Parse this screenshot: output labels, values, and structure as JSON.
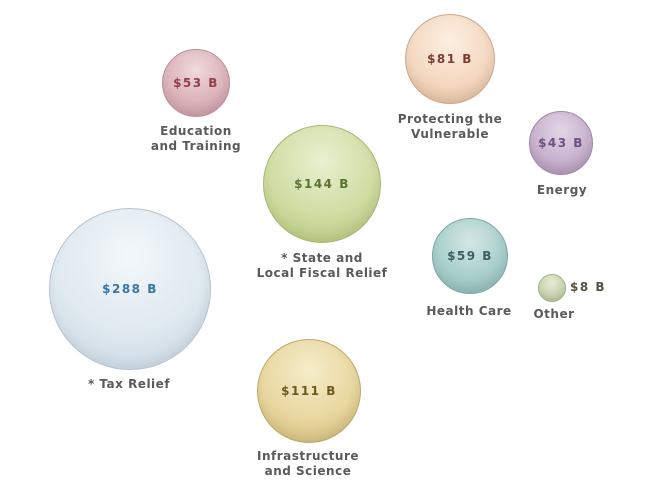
{
  "chart_data": {
    "type": "bubble",
    "title": "",
    "legend": "none",
    "axes": "none",
    "background_color": "#ffffff",
    "label_color": "#5a5a5a",
    "points": [
      {
        "label": "* Tax Relief",
        "value": 288,
        "value_label": "$288 B",
        "bubble_color": "#dfe9f0",
        "value_text_color": "#3a76a4"
      },
      {
        "label": "* State and\nLocal Fiscal Relief",
        "value": 144,
        "value_label": "$144 B",
        "bubble_color": "#cfdda3",
        "value_text_color": "#5a7331"
      },
      {
        "label": "Infrastructure\nand Science",
        "value": 111,
        "value_label": "$111 B",
        "bubble_color": "#e8d7a0",
        "value_text_color": "#6e5a1e"
      },
      {
        "label": "Protecting the\nVulnerable",
        "value": 81,
        "value_label": "$81 B",
        "bubble_color": "#f4d9c1",
        "value_text_color": "#7e3c31"
      },
      {
        "label": "Health Care",
        "value": 59,
        "value_label": "$59 B",
        "bubble_color": "#a9cfcc",
        "value_text_color": "#3d5f66"
      },
      {
        "label": "Education\nand Training",
        "value": 53,
        "value_label": "$53 B",
        "bubble_color": "#dcb3ba",
        "value_text_color": "#93404d"
      },
      {
        "label": "Energy",
        "value": 43,
        "value_label": "$43 B",
        "bubble_color": "#c8b2ce",
        "value_text_color": "#6d5080"
      },
      {
        "label": "Other",
        "value": 8,
        "value_label": "$8 B",
        "bubble_color": "#cdd8b5",
        "value_text_color": "#53523c"
      }
    ]
  }
}
